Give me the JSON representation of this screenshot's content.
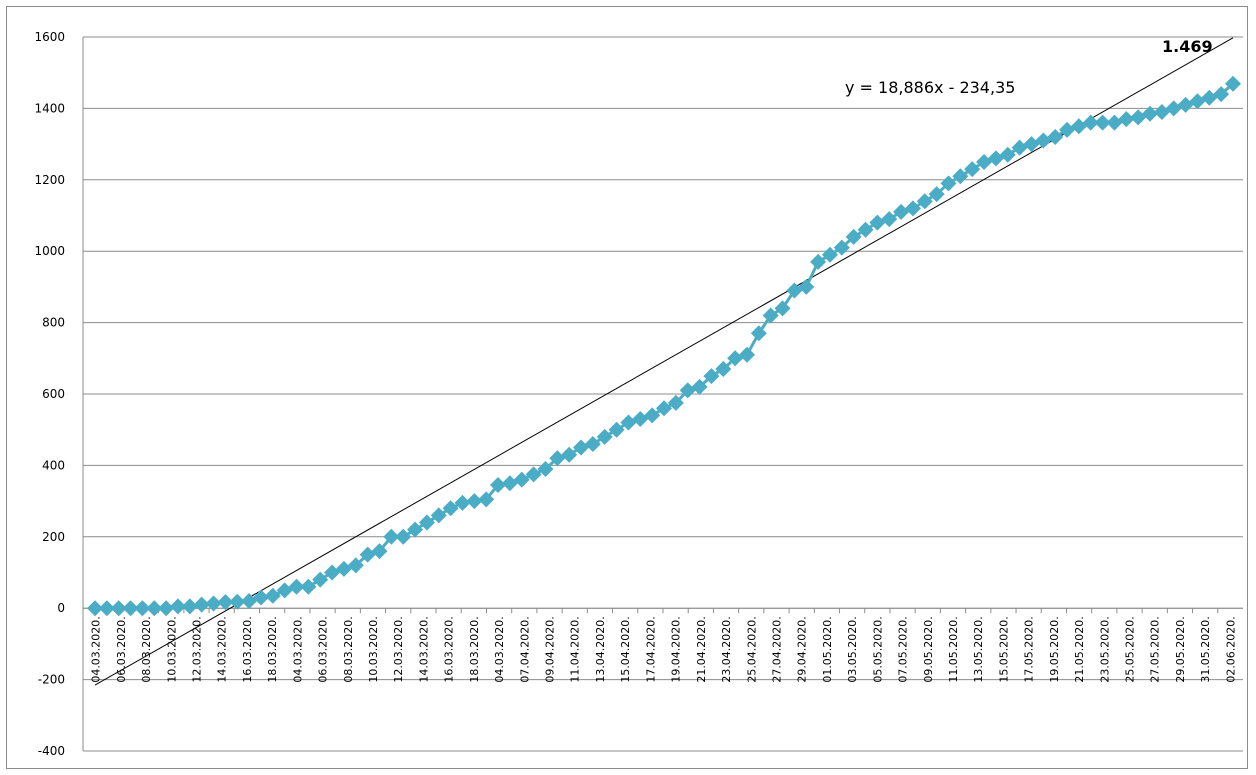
{
  "chart_data": {
    "type": "line",
    "title": "",
    "xlabel": "",
    "ylabel": "",
    "ylim": [
      -400,
      1600
    ],
    "y_ticks": [
      -400,
      -200,
      0,
      200,
      400,
      600,
      800,
      1000,
      1200,
      1400,
      1600
    ],
    "grid": "horizontal",
    "legend": "none",
    "marker": "diamond",
    "series_color": "#4bacc6",
    "trendline_color": "#000000",
    "x_labels": [
      "04.03.2020.",
      "06.03.2020.",
      "08.03.2020.",
      "10.03.2020.",
      "12.03.2020.",
      "14.03.2020.",
      "16.03.2020.",
      "18.03.2020.",
      "04.03.2020.",
      "06.03.2020.",
      "08.03.2020.",
      "10.03.2020.",
      "12.03.2020.",
      "14.03.2020.",
      "16.03.2020.",
      "18.03.2020.",
      "04.03.2020.",
      "07.04.2020.",
      "09.04.2020.",
      "11.04.2020.",
      "13.04.2020.",
      "15.04.2020.",
      "17.04.2020.",
      "19.04.2020.",
      "21.04.2020.",
      "23.04.2020.",
      "25.04.2020.",
      "27.04.2020.",
      "29.04.2020.",
      "01.05.2020.",
      "03.05.2020.",
      "05.05.2020.",
      "07.05.2020.",
      "09.05.2020.",
      "11.05.2020.",
      "13.05.2020.",
      "15.05.2020.",
      "17.05.2020.",
      "19.05.2020.",
      "21.05.2020.",
      "23.05.2020.",
      "25.05.2020.",
      "27.05.2020.",
      "29.05.2020.",
      "31.05.2020.",
      "02.06.2020."
    ],
    "series": [
      {
        "values": [
          0,
          0,
          0,
          0,
          0,
          0,
          0,
          5,
          5,
          10,
          13,
          17,
          18,
          20,
          30,
          35,
          50,
          60,
          60,
          80,
          100,
          110,
          120,
          150,
          160,
          200,
          200,
          220,
          240,
          260,
          280,
          295,
          300,
          305,
          345,
          350,
          360,
          375,
          390,
          420,
          430,
          450,
          460,
          480,
          500,
          520,
          530,
          540,
          560,
          575,
          610,
          620,
          650,
          670,
          700,
          710,
          770,
          820,
          840,
          890,
          900,
          970,
          990,
          1010,
          1040,
          1060,
          1080,
          1090,
          1110,
          1120,
          1140,
          1160,
          1190,
          1210,
          1230,
          1250,
          1260,
          1270,
          1290,
          1300,
          1310,
          1320,
          1340,
          1350,
          1360,
          1360,
          1360,
          1370,
          1375,
          1385,
          1390,
          1400,
          1410,
          1420,
          1430,
          1440,
          1469
        ]
      }
    ],
    "trendline": {
      "slope": 18.886,
      "intercept": -234.35
    },
    "annotations": {
      "last_value": "1.469",
      "equation": "y = 18,886x - 234,35"
    }
  }
}
